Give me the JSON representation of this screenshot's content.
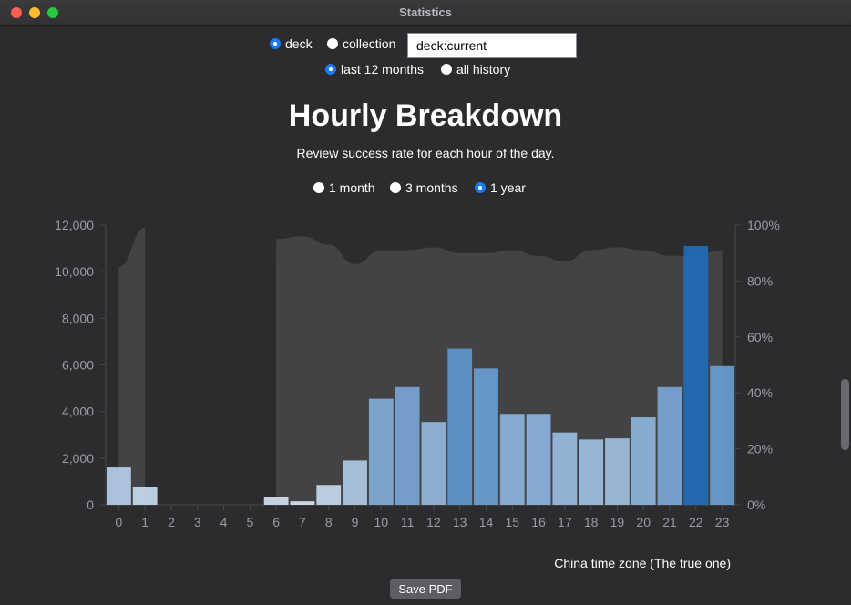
{
  "window": {
    "title": "Statistics"
  },
  "filters": {
    "scope": [
      {
        "label": "deck",
        "selected": true
      },
      {
        "label": "collection",
        "selected": false
      }
    ],
    "search_value": "deck:current",
    "range": [
      {
        "label": "last 12 months",
        "selected": true
      },
      {
        "label": "all history",
        "selected": false
      }
    ]
  },
  "graph": {
    "title": "Hourly Breakdown",
    "subtitle": "Review success rate for each hour of the day.",
    "period_options": [
      {
        "label": "1 month",
        "selected": false
      },
      {
        "label": "3 months",
        "selected": false
      },
      {
        "label": "1 year",
        "selected": true
      }
    ],
    "timezone_note": "China time zone (The true one)"
  },
  "save_pdf_label": "Save PDF",
  "colors": {
    "bar_light": "#dde8f5",
    "bar_dark": "#1f6db8",
    "area": "#505052"
  },
  "chart_data": {
    "type": "bar",
    "title": "",
    "categories": [
      "0",
      "1",
      "2",
      "3",
      "4",
      "5",
      "6",
      "7",
      "8",
      "9",
      "10",
      "11",
      "12",
      "13",
      "14",
      "15",
      "16",
      "17",
      "18",
      "19",
      "20",
      "21",
      "22",
      "23"
    ],
    "series": [
      {
        "values": [
          1600,
          750,
          0,
          0,
          0,
          0,
          350,
          150,
          850,
          1900,
          4550,
          5050,
          3550,
          6700,
          5850,
          3900,
          3900,
          3100,
          2800,
          2850,
          3750,
          5050,
          11100,
          5950
        ]
      }
    ],
    "success_rate": [
      0.85,
      0.99,
      null,
      null,
      null,
      null,
      0.95,
      0.96,
      0.93,
      0.86,
      0.91,
      0.91,
      0.92,
      0.9,
      0.9,
      0.91,
      0.89,
      0.87,
      0.91,
      0.92,
      0.91,
      0.89,
      0.89,
      0.91
    ],
    "y_left_ticks": [
      "0",
      "2,000",
      "4,000",
      "6,000",
      "8,000",
      "10,000",
      "12,000"
    ],
    "y_right_ticks": [
      "0%",
      "20%",
      "40%",
      "60%",
      "80%",
      "100%"
    ],
    "ylim": [
      0,
      12000
    ],
    "y2lim": [
      0,
      1
    ]
  }
}
